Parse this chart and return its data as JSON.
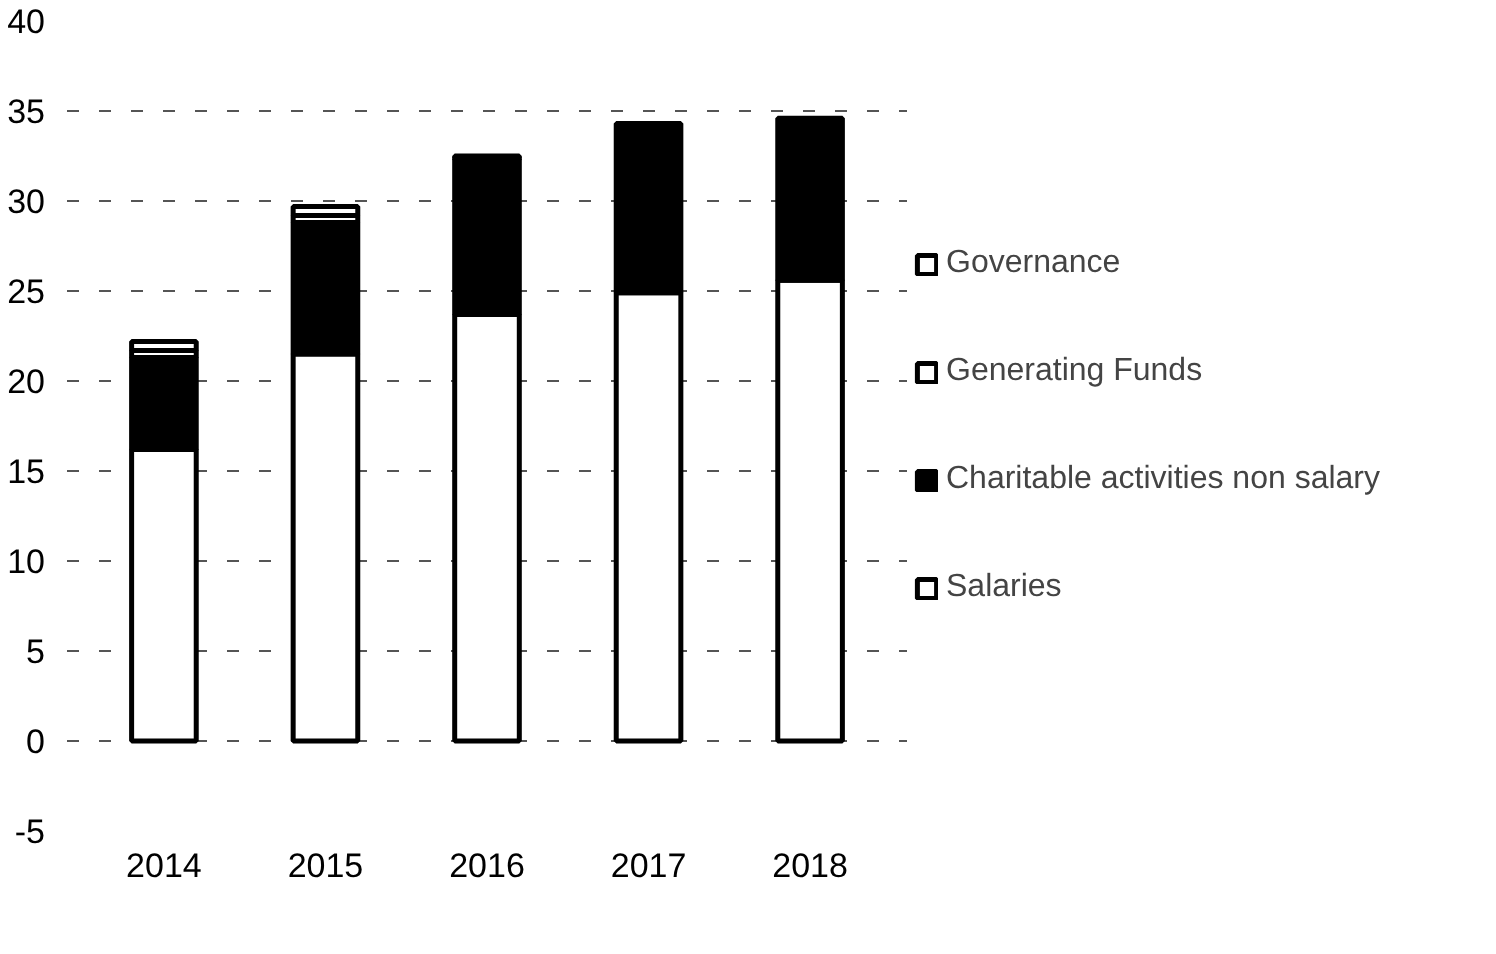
{
  "chart_data": {
    "type": "bar",
    "stacked": true,
    "categories": [
      "2014",
      "2015",
      "2016",
      "2017",
      "2018"
    ],
    "series": [
      {
        "name": "Salaries",
        "color": "#ffffff",
        "values": [
          16.2,
          21.5,
          23.7,
          24.9,
          25.6
        ]
      },
      {
        "name": "Charitable activities non salary",
        "color": "#000000",
        "values": [
          5.1,
          7.3,
          8.6,
          9.4,
          9.0
        ]
      },
      {
        "name": "Generating Funds",
        "color": "#ffffff",
        "values": [
          0.4,
          0.4,
          0.1,
          null,
          null
        ]
      },
      {
        "name": "Governance",
        "color": "#ffffff",
        "values": [
          0.5,
          0.5,
          0.1,
          null,
          null
        ]
      }
    ],
    "ylim": [
      -5,
      40
    ],
    "yticks": [
      -5,
      0,
      5,
      10,
      15,
      20,
      25,
      30,
      35,
      40
    ],
    "grid": "y",
    "legend": "right"
  }
}
